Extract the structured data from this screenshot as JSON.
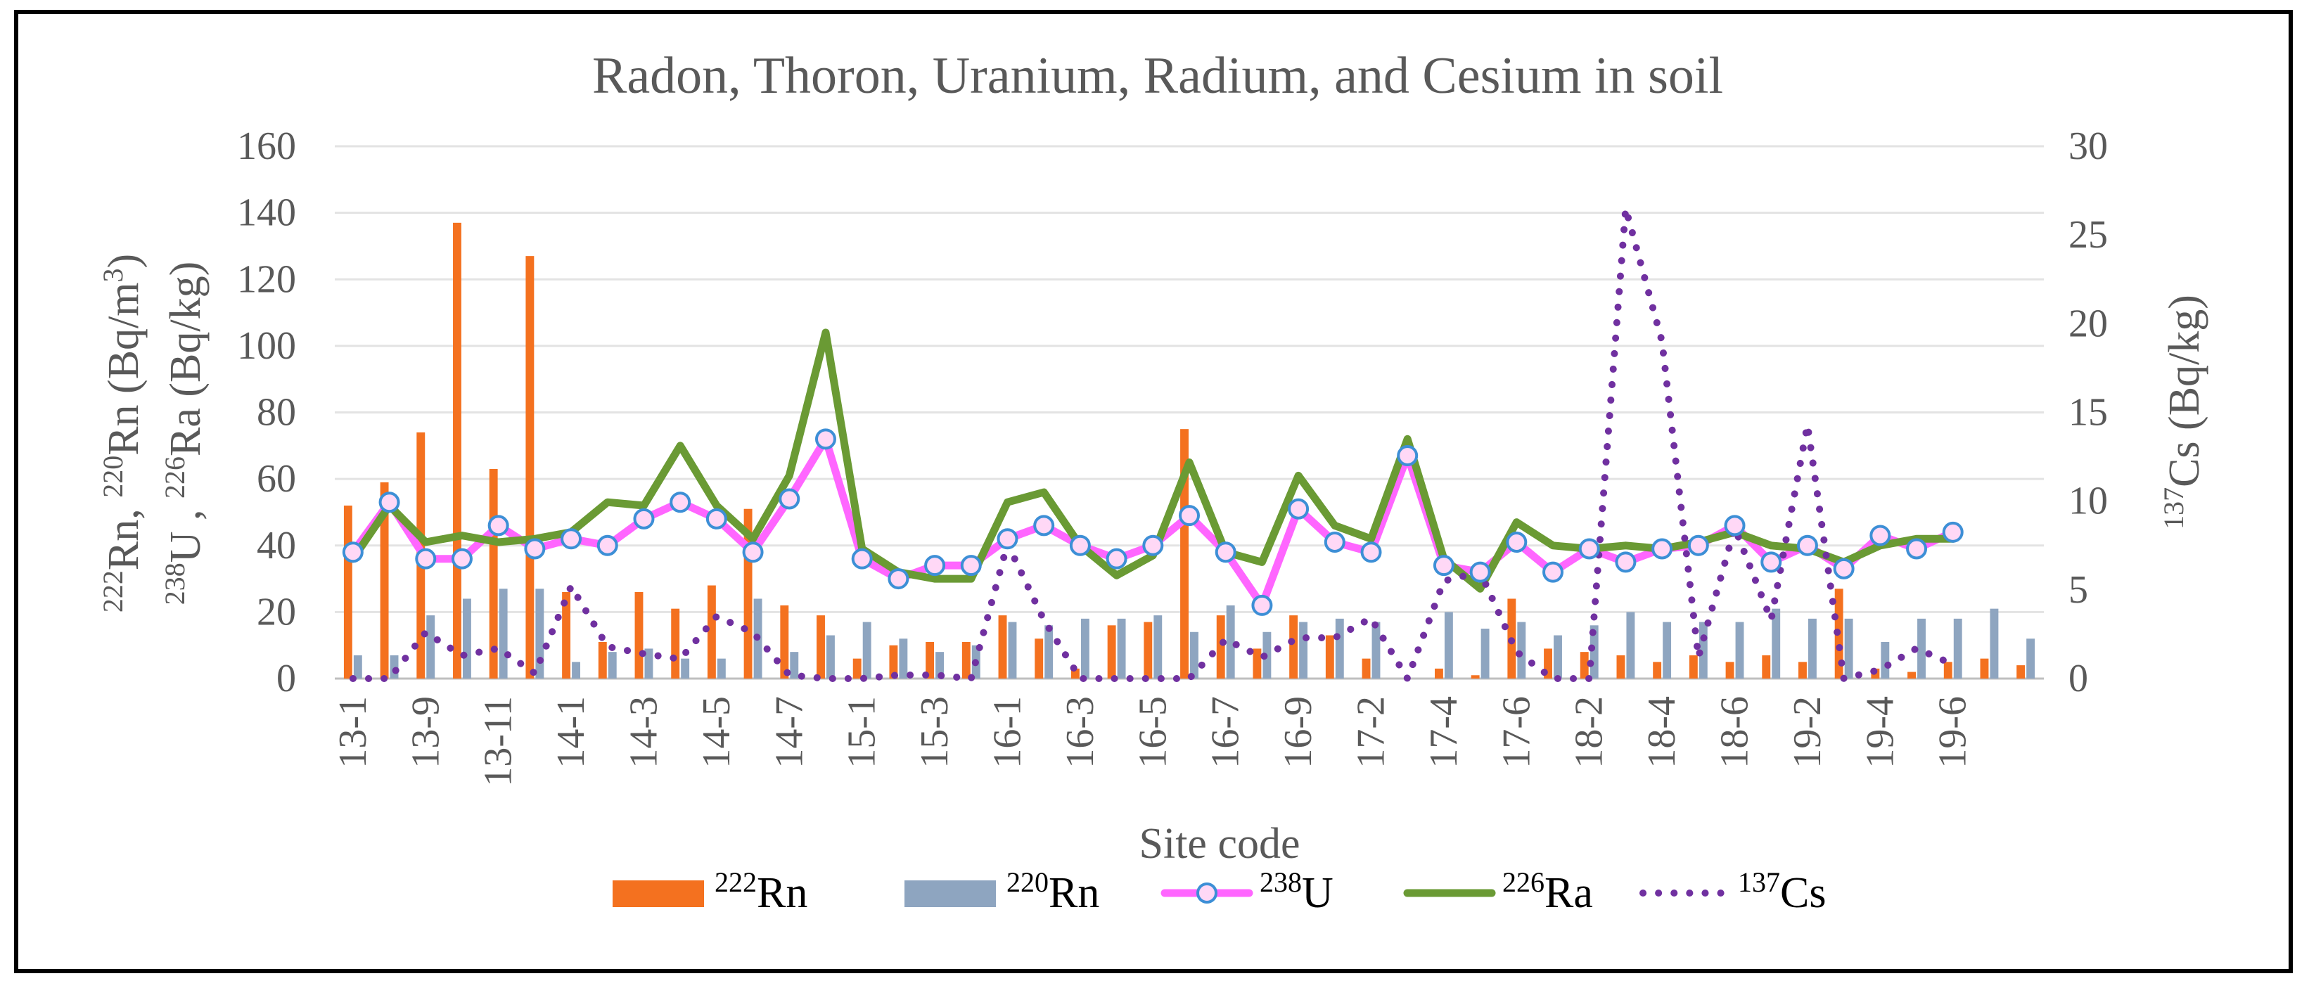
{
  "chart_data": {
    "type": "bar",
    "title": "Radon, Thoron, Uranium, Radium, and Cesium  in soil",
    "xlabel": "Site code",
    "ylabel_left": {
      "line1": [
        {
          "sup": "222",
          "text": "Rn, "
        },
        {
          "sup": "220",
          "text": "Rn (Bq/m"
        },
        {
          "sup": "3",
          "text": ")"
        }
      ],
      "line2": [
        {
          "sup": "238",
          "text": "U , "
        },
        {
          "sup": "226",
          "text": "Ra (Bq/kg)"
        }
      ]
    },
    "ylabel_right": {
      "sup": "137",
      "text": "Cs (Bq/kg)"
    },
    "ylim_left": [
      0,
      160
    ],
    "ylim_right": [
      0,
      30
    ],
    "yticks_left": [
      "0",
      "20",
      "40",
      "60",
      "80",
      "100",
      "120",
      "140",
      "160"
    ],
    "yticks_right": [
      "0",
      "5",
      "10",
      "15",
      "20",
      "25",
      "30"
    ],
    "grid": true,
    "legend_position": "bottom",
    "x_tick_labels": [
      "13-1",
      "13-9",
      "13-11",
      "14-1",
      "14-3",
      "14-5",
      "14-7",
      "15-1",
      "15-3",
      "16-1",
      "16-3",
      "16-5",
      "16-7",
      "16-9",
      "17-2",
      "17-4",
      "17-6",
      "18-2",
      "18-4",
      "18-6",
      "19-2",
      "19-4",
      "19-6"
    ],
    "n_categories": 47,
    "series": [
      {
        "name": {
          "sup": "222",
          "text": "Rn"
        },
        "kind": "bar",
        "axis": "left",
        "color": "#f4711f",
        "values": [
          52,
          59,
          74,
          137,
          63,
          127,
          26,
          11,
          26,
          21,
          28,
          51,
          22,
          19,
          6,
          10,
          11,
          11,
          19,
          12,
          3,
          16,
          17,
          75,
          19,
          9,
          19,
          13,
          6,
          0,
          3,
          1,
          24,
          9,
          8,
          7,
          5,
          7,
          5,
          7,
          5,
          27,
          3,
          2,
          5,
          6,
          4
        ]
      },
      {
        "name": {
          "sup": "220",
          "text": "Rn"
        },
        "kind": "bar",
        "axis": "left",
        "color": "#8ea5c0",
        "values": [
          7,
          7,
          19,
          24,
          27,
          27,
          5,
          8,
          9,
          6,
          6,
          24,
          8,
          13,
          17,
          12,
          8,
          10,
          17,
          16,
          18,
          18,
          19,
          14,
          22,
          14,
          17,
          18,
          17,
          0,
          20,
          15,
          17,
          13,
          16,
          20,
          17,
          17,
          17,
          21,
          18,
          18,
          11,
          18,
          18,
          21,
          12
        ]
      },
      {
        "name": {
          "sup": "238",
          "text": "U"
        },
        "kind": "line",
        "axis": "left",
        "color": "#ff66ff",
        "marker": "circle",
        "marker_color": "#3d8fd6",
        "values": [
          38,
          53,
          36,
          36,
          46,
          39,
          42,
          40,
          48,
          53,
          48,
          38,
          54,
          72,
          36,
          30,
          34,
          34,
          42,
          46,
          40,
          36,
          40,
          49,
          38,
          22,
          51,
          41,
          38,
          67,
          34,
          32,
          41,
          32,
          39,
          35,
          39,
          40,
          46,
          35,
          40,
          33,
          43,
          39,
          44,
          null,
          null
        ]
      },
      {
        "name": {
          "sup": "226",
          "text": "Ra"
        },
        "kind": "line",
        "axis": "left",
        "color": "#6a9a34",
        "values": [
          36,
          52,
          41,
          43,
          41,
          42,
          44,
          53,
          52,
          70,
          52,
          42,
          61,
          104,
          39,
          32,
          30,
          30,
          53,
          56,
          40,
          31,
          37,
          65,
          38,
          35,
          61,
          46,
          42,
          72,
          36,
          27,
          47,
          40,
          39,
          40,
          39,
          41,
          44,
          40,
          39,
          35,
          40,
          42,
          42,
          null,
          null
        ]
      },
      {
        "name": {
          "sup": "137",
          "text": "Cs"
        },
        "kind": "line",
        "axis": "right",
        "color": "#7030a0",
        "dash": "dotted",
        "values": [
          0,
          0,
          2.6,
          1.3,
          1.7,
          0.3,
          5.2,
          1.8,
          1.4,
          1.1,
          3.5,
          2.6,
          0.2,
          0,
          0,
          0.2,
          0.2,
          0,
          7.6,
          3.3,
          0,
          0,
          0,
          0,
          2.2,
          1.2,
          2.3,
          2.3,
          3.4,
          0,
          5.5,
          6.0,
          1.5,
          0,
          0,
          26.5,
          19.0,
          1.2,
          8.5,
          3.3,
          14.3,
          0,
          0.5,
          1.7,
          0.8,
          null,
          null
        ]
      }
    ]
  }
}
